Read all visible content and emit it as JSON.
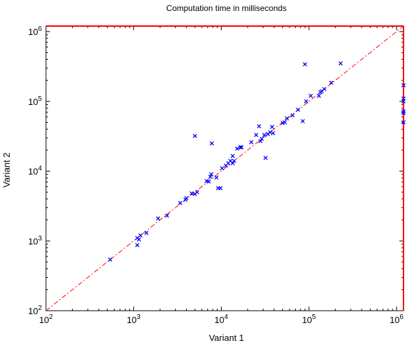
{
  "chart_data": {
    "type": "scatter",
    "title": "Computation time in milliseconds",
    "xlabel": "Variant 1",
    "ylabel": "Variant 2",
    "xscale": "log",
    "yscale": "log",
    "xlim": [
      100,
      1200000
    ],
    "ylim": [
      100,
      1200000
    ],
    "grid": false,
    "legend": "none",
    "x_ticks": [
      {
        "value": 100,
        "base": "10",
        "exp": "2"
      },
      {
        "value": 1000,
        "base": "10",
        "exp": "3"
      },
      {
        "value": 10000,
        "base": "10",
        "exp": "4"
      },
      {
        "value": 100000,
        "base": "10",
        "exp": "5"
      },
      {
        "value": 1000000,
        "base": "10",
        "exp": "6"
      }
    ],
    "y_ticks": [
      {
        "value": 100,
        "base": "10",
        "exp": "2"
      },
      {
        "value": 1000,
        "base": "10",
        "exp": "3"
      },
      {
        "value": 10000,
        "base": "10",
        "exp": "4"
      },
      {
        "value": 100000,
        "base": "10",
        "exp": "5"
      },
      {
        "value": 1000000,
        "base": "10",
        "exp": "6"
      }
    ],
    "diagonal": {
      "from": 100,
      "to": 1200000,
      "style": "dash-dot",
      "color": "#ff0000"
    },
    "timeout_value": 1200000,
    "timeout_color": "#ff0000",
    "marker_color": "#0000ff",
    "marker": "x",
    "points": [
      [
        540,
        540
      ],
      [
        1100,
        870
      ],
      [
        1100,
        1100
      ],
      [
        1150,
        1050
      ],
      [
        1200,
        1200
      ],
      [
        1400,
        1300
      ],
      [
        1900,
        2100
      ],
      [
        2400,
        2300
      ],
      [
        3400,
        3500
      ],
      [
        3900,
        3900
      ],
      [
        4000,
        4100
      ],
      [
        4600,
        4800
      ],
      [
        5000,
        4700
      ],
      [
        5300,
        5000
      ],
      [
        6800,
        7200
      ],
      [
        7200,
        7100
      ],
      [
        7500,
        8300
      ],
      [
        7700,
        9000
      ],
      [
        8800,
        8100
      ],
      [
        9200,
        5700
      ],
      [
        9800,
        5700
      ],
      [
        10200,
        11000
      ],
      [
        11300,
        12000
      ],
      [
        12000,
        13000
      ],
      [
        12700,
        14000
      ],
      [
        13500,
        13000
      ],
      [
        13500,
        16500
      ],
      [
        14000,
        14000
      ],
      [
        15200,
        21000
      ],
      [
        16500,
        22000
      ],
      [
        17000,
        22000
      ],
      [
        22000,
        26000
      ],
      [
        25000,
        33000
      ],
      [
        27000,
        44000
      ],
      [
        28000,
        27000
      ],
      [
        29000,
        29000
      ],
      [
        31000,
        33000
      ],
      [
        32000,
        15500
      ],
      [
        34000,
        34000
      ],
      [
        36000,
        36000
      ],
      [
        38000,
        43000
      ],
      [
        39000,
        35000
      ],
      [
        50000,
        49000
      ],
      [
        53000,
        50000
      ],
      [
        56000,
        57000
      ],
      [
        65000,
        63000
      ],
      [
        75000,
        76000
      ],
      [
        85000,
        52000
      ],
      [
        90000,
        340000
      ],
      [
        93000,
        100000
      ],
      [
        105000,
        120000
      ],
      [
        130000,
        120000
      ],
      [
        135000,
        135000
      ],
      [
        140000,
        140000
      ],
      [
        150000,
        150000
      ],
      [
        180000,
        185000
      ],
      [
        230000,
        350000
      ],
      [
        5000,
        32000
      ],
      [
        7800,
        25000
      ],
      [
        1200000,
        170000
      ],
      [
        1200000,
        110000
      ],
      [
        1200000,
        100000
      ],
      [
        1200000,
        72000
      ],
      [
        1200000,
        68000
      ],
      [
        1200000,
        50000
      ]
    ]
  }
}
